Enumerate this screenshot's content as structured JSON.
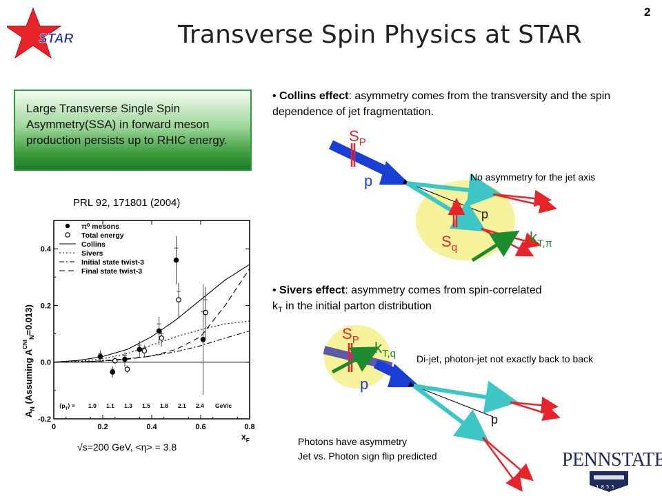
{
  "slide": {
    "title": "Transverse Spin Physics at STAR",
    "page_number": "2",
    "logo_text": "STAR"
  },
  "left": {
    "box_text": "Large Transverse Single Spin Asymmetry(SSA) in forward meson production persists up to RHIC energy.",
    "citation": "PRL 92, 171801 (2004)",
    "caption": "√s=200 GeV, <η> = 3.8"
  },
  "collins": {
    "term": "Collins effect",
    "text": ": asymmetry comes from the transversity and the spin dependence of jet fragmentation.",
    "note": "No asymmetry for the jet axis",
    "labels": {
      "sp": "S",
      "sp_sub": "P",
      "p": "p",
      "p2": "p",
      "sq": "S",
      "sq_sub": "q",
      "kt": "k",
      "kt_sub": "T,π"
    }
  },
  "sivers": {
    "term": "Sivers effect",
    "text_a": ": asymmetry comes from spin-correlated",
    "text_b_k": "k",
    "text_b_sub": "T",
    "text_b": " in the initial parton distribution",
    "note": "Di-jet, photon-jet not exactly back to back",
    "labels": {
      "sp": "S",
      "sp_sub": "P",
      "kt": "k",
      "kt_sub": "T,q",
      "p": "p",
      "p2": "p"
    },
    "photon_line1": "Photons have asymmetry",
    "photon_line2": "Jet vs. Photon sign flip predicted"
  },
  "pennstate": {
    "text_a": "PENN",
    "text_b": "STATE",
    "year": "1855"
  },
  "chart_data": {
    "type": "scatter",
    "xlabel": "x",
    "xlabel_sub": "F",
    "ylabel": "A",
    "ylabel_sub": "N",
    "ylabel_rest": " (Assuming A",
    "ylabel_sup": "CNI",
    "ylabel_sub2": "N",
    "ylabel_end": "=0.013)",
    "xlim": [
      0,
      0.8
    ],
    "ylim": [
      -0.2,
      0.5
    ],
    "xticks": [
      "0",
      "0.2",
      "0.4",
      "0.6",
      "0.8"
    ],
    "yticks": [
      "-0.2",
      "0.0",
      "0.2",
      "0.4"
    ],
    "legend": [
      "π⁰ mesons",
      "Total energy",
      "Collins",
      "Sivers",
      "Initial state twist-3",
      "Final state twist-3"
    ],
    "pt_label": "⟨p",
    "pt_label_sub": "T",
    "pt_label_end": "⟩ =",
    "pt_values": [
      "1.0",
      "1.1",
      "1.3",
      "1.5",
      "1.8",
      "2.1",
      "2.4"
    ],
    "pt_unit": "GeV/c",
    "series": [
      {
        "name": "π⁰ mesons",
        "marker": "filled",
        "points": [
          {
            "x": 0.19,
            "y": 0.02,
            "err": 0.022
          },
          {
            "x": 0.24,
            "y": -0.035,
            "err": 0.02
          },
          {
            "x": 0.29,
            "y": 0.01,
            "err": 0.025
          },
          {
            "x": 0.35,
            "y": 0.045,
            "err": 0.03
          },
          {
            "x": 0.43,
            "y": 0.11,
            "err": 0.05
          },
          {
            "x": 0.5,
            "y": 0.36,
            "err": 0.085
          },
          {
            "x": 0.61,
            "y": 0.08,
            "err": 0.195
          }
        ]
      },
      {
        "name": "Total energy",
        "marker": "open",
        "points": [
          {
            "x": 0.25,
            "y": 0.005,
            "err": 0.012
          },
          {
            "x": 0.3,
            "y": -0.025,
            "err": 0.013
          },
          {
            "x": 0.37,
            "y": 0.04,
            "err": 0.02
          },
          {
            "x": 0.44,
            "y": 0.085,
            "err": 0.03
          },
          {
            "x": 0.51,
            "y": 0.22,
            "err": 0.06
          },
          {
            "x": 0.62,
            "y": 0.175,
            "err": 0.09
          }
        ]
      }
    ],
    "curves": [
      {
        "name": "Collins",
        "style": "solid",
        "points": [
          [
            0.0,
            0.0
          ],
          [
            0.1,
            0.006
          ],
          [
            0.2,
            0.02
          ],
          [
            0.3,
            0.045
          ],
          [
            0.4,
            0.09
          ],
          [
            0.5,
            0.15
          ],
          [
            0.6,
            0.22
          ],
          [
            0.7,
            0.29
          ],
          [
            0.8,
            0.345
          ]
        ]
      },
      {
        "name": "Sivers",
        "style": "dotted",
        "points": [
          [
            0.0,
            0.0
          ],
          [
            0.1,
            0.003
          ],
          [
            0.2,
            0.012
          ],
          [
            0.3,
            0.03
          ],
          [
            0.4,
            0.06
          ],
          [
            0.5,
            0.09
          ],
          [
            0.6,
            0.115
          ],
          [
            0.7,
            0.135
          ],
          [
            0.8,
            0.145
          ]
        ]
      },
      {
        "name": "Initial state twist-3",
        "style": "dashdot",
        "points": [
          [
            0.0,
            0.0
          ],
          [
            0.1,
            0.001
          ],
          [
            0.2,
            0.005
          ],
          [
            0.3,
            0.012
          ],
          [
            0.4,
            0.022
          ],
          [
            0.5,
            0.037
          ],
          [
            0.6,
            0.058
          ],
          [
            0.7,
            0.085
          ],
          [
            0.8,
            0.11
          ]
        ]
      },
      {
        "name": "Final state twist-3",
        "style": "dashed",
        "points": [
          [
            0.0,
            0.0
          ],
          [
            0.1,
            0.001
          ],
          [
            0.2,
            0.004
          ],
          [
            0.3,
            0.01
          ],
          [
            0.4,
            0.022
          ],
          [
            0.5,
            0.045
          ],
          [
            0.6,
            0.09
          ],
          [
            0.7,
            0.2
          ],
          [
            0.8,
            0.33
          ]
        ]
      }
    ]
  }
}
